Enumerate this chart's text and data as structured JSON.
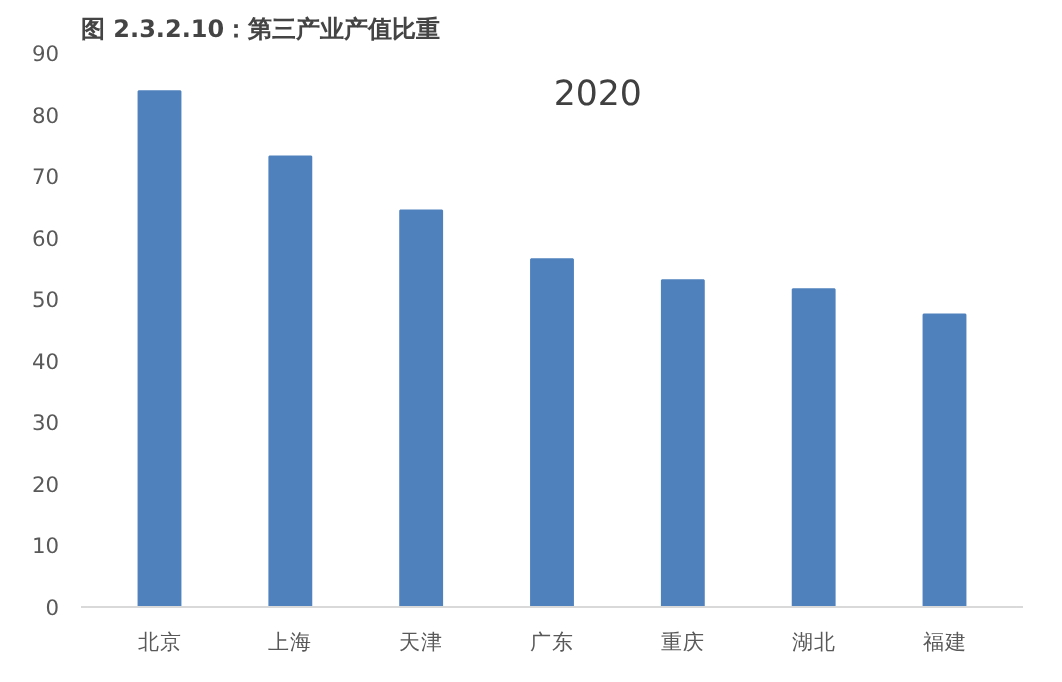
{
  "chart_data": {
    "type": "bar",
    "title": "图 2.3.2.10：第三产业产值比重",
    "annotations": [
      "2020"
    ],
    "categories": [
      "北京",
      "上海",
      "天津",
      "广东",
      "重庆",
      "湖北",
      "福建"
    ],
    "values": [
      83.8,
      73.2,
      64.4,
      56.5,
      53.1,
      51.6,
      47.5
    ],
    "color": "#4f81bd",
    "ylim": [
      0,
      90
    ],
    "yticks": [
      0,
      10,
      20,
      30,
      40,
      50,
      60,
      70,
      80,
      90
    ],
    "grid": false
  }
}
